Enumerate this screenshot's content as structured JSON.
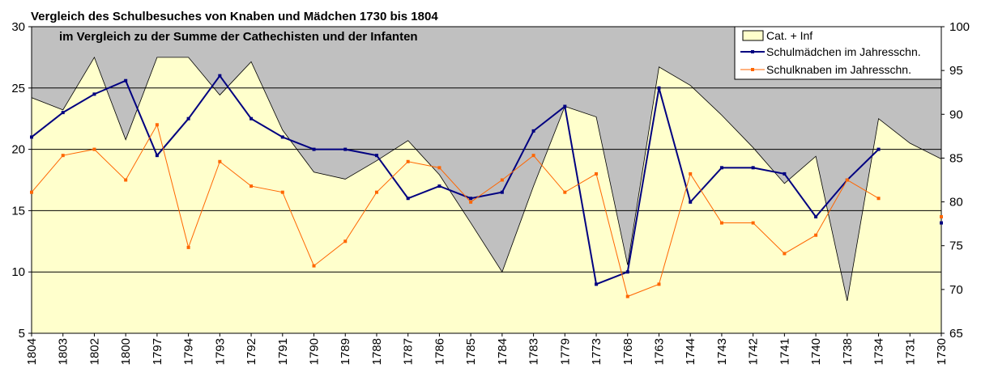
{
  "chart_data": {
    "type": "area+line",
    "title": "Vergleich des Schulbesuches von Knaben und Mädchen 1730 bis 1804",
    "subtitle": "im Vergleich zu der Summe der Cathechisten und der Infanten",
    "categories": [
      "1804",
      "1803",
      "1802",
      "1800",
      "1797",
      "1794",
      "1793",
      "1792",
      "1791",
      "1790",
      "1789",
      "1788",
      "1787",
      "1786",
      "1785",
      "1784",
      "1783",
      "1779",
      "1773",
      "1768",
      "1763",
      "1744",
      "1743",
      "1742",
      "1741",
      "1740",
      "1738",
      "1734",
      "1731",
      "1730"
    ],
    "left_axis": {
      "min": 5,
      "max": 30,
      "ticks": [
        "5",
        "10",
        "15",
        "20",
        "25",
        "30"
      ]
    },
    "right_axis": {
      "min": 65,
      "max": 100,
      "ticks": [
        "65",
        "70",
        "75",
        "80",
        "85",
        "90",
        "95",
        "100"
      ]
    },
    "series": [
      {
        "name": "Cat. + Inf",
        "kind": "area",
        "axis": "right",
        "color": "#ffffcc",
        "values": [
          91.9,
          90.5,
          96.5,
          87.1,
          96.5,
          96.5,
          92.2,
          96.0,
          88.2,
          83.4,
          82.6,
          84.7,
          87.0,
          83.1,
          77.6,
          72.0,
          81.8,
          90.9,
          89.7,
          72.8,
          95.4,
          93.3,
          89.9,
          86.2,
          82.1,
          85.2,
          68.7,
          89.5,
          86.7,
          84.9
        ]
      },
      {
        "name": "Schulmädchen im Jahresschn.",
        "kind": "line",
        "axis": "left",
        "color": "#000080",
        "values": [
          21,
          23,
          24.5,
          25.6,
          19.5,
          22.5,
          26,
          22.5,
          21,
          20,
          20,
          19.5,
          16,
          17,
          16,
          16.5,
          21.5,
          23.5,
          9,
          10,
          25,
          15.7,
          18.5,
          18.5,
          18,
          14.5,
          17.5,
          20,
          null,
          14
        ]
      },
      {
        "name": "Schulknaben im Jahresschn.",
        "kind": "line",
        "axis": "left",
        "color": "#ff6600",
        "values": [
          16.5,
          19.5,
          20,
          17.5,
          22,
          12,
          19,
          17,
          16.5,
          10.5,
          12.5,
          16.5,
          19,
          18.5,
          15.7,
          17.5,
          19.5,
          16.5,
          18,
          8,
          9,
          18,
          14,
          14,
          11.5,
          13,
          17.5,
          16,
          null,
          14.5
        ]
      }
    ],
    "plot_background": "#c0c0c0",
    "grid": "horizontal",
    "legend_position": "top-right"
  }
}
